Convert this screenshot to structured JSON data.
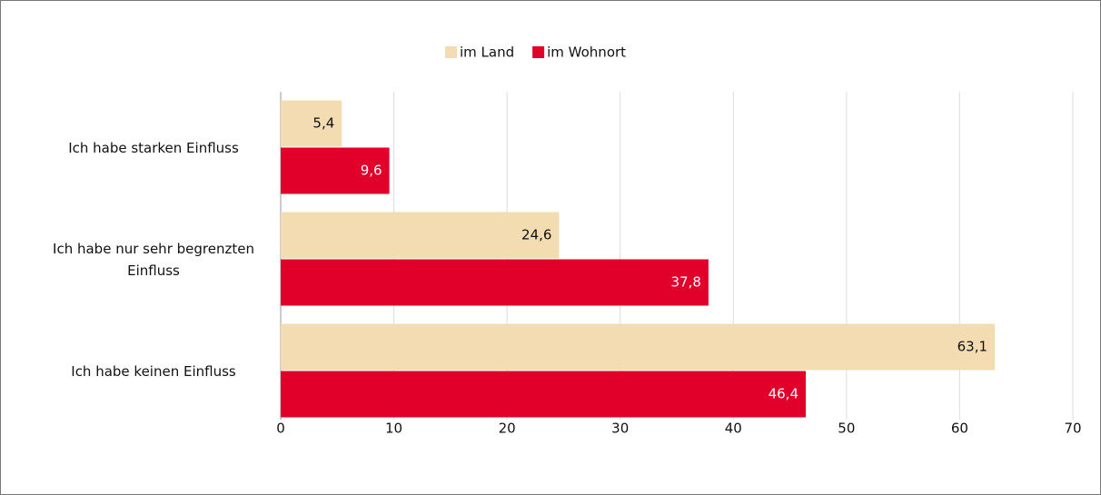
{
  "chart_data": {
    "type": "hbar",
    "categories": [
      "Ich habe starken Einfluss",
      "Ich habe nur sehr begrenzten Einfluss",
      "Ich habe keinen Einfluss"
    ],
    "series": [
      {
        "name": "im Land",
        "color": "#f3dcb2",
        "values": [
          5.4,
          24.6,
          63.1
        ],
        "value_labels": [
          "5,4",
          "24,6",
          "63,1"
        ]
      },
      {
        "name": "im Wohnort",
        "color": "#e0002a",
        "values": [
          9.6,
          37.8,
          46.4
        ],
        "value_labels": [
          "9,6",
          "37,8",
          "46,4"
        ]
      }
    ],
    "xlim": [
      0,
      70
    ],
    "xticks": [
      0,
      10,
      20,
      30,
      40,
      50,
      60,
      70
    ],
    "grid": true,
    "legend": "top"
  }
}
